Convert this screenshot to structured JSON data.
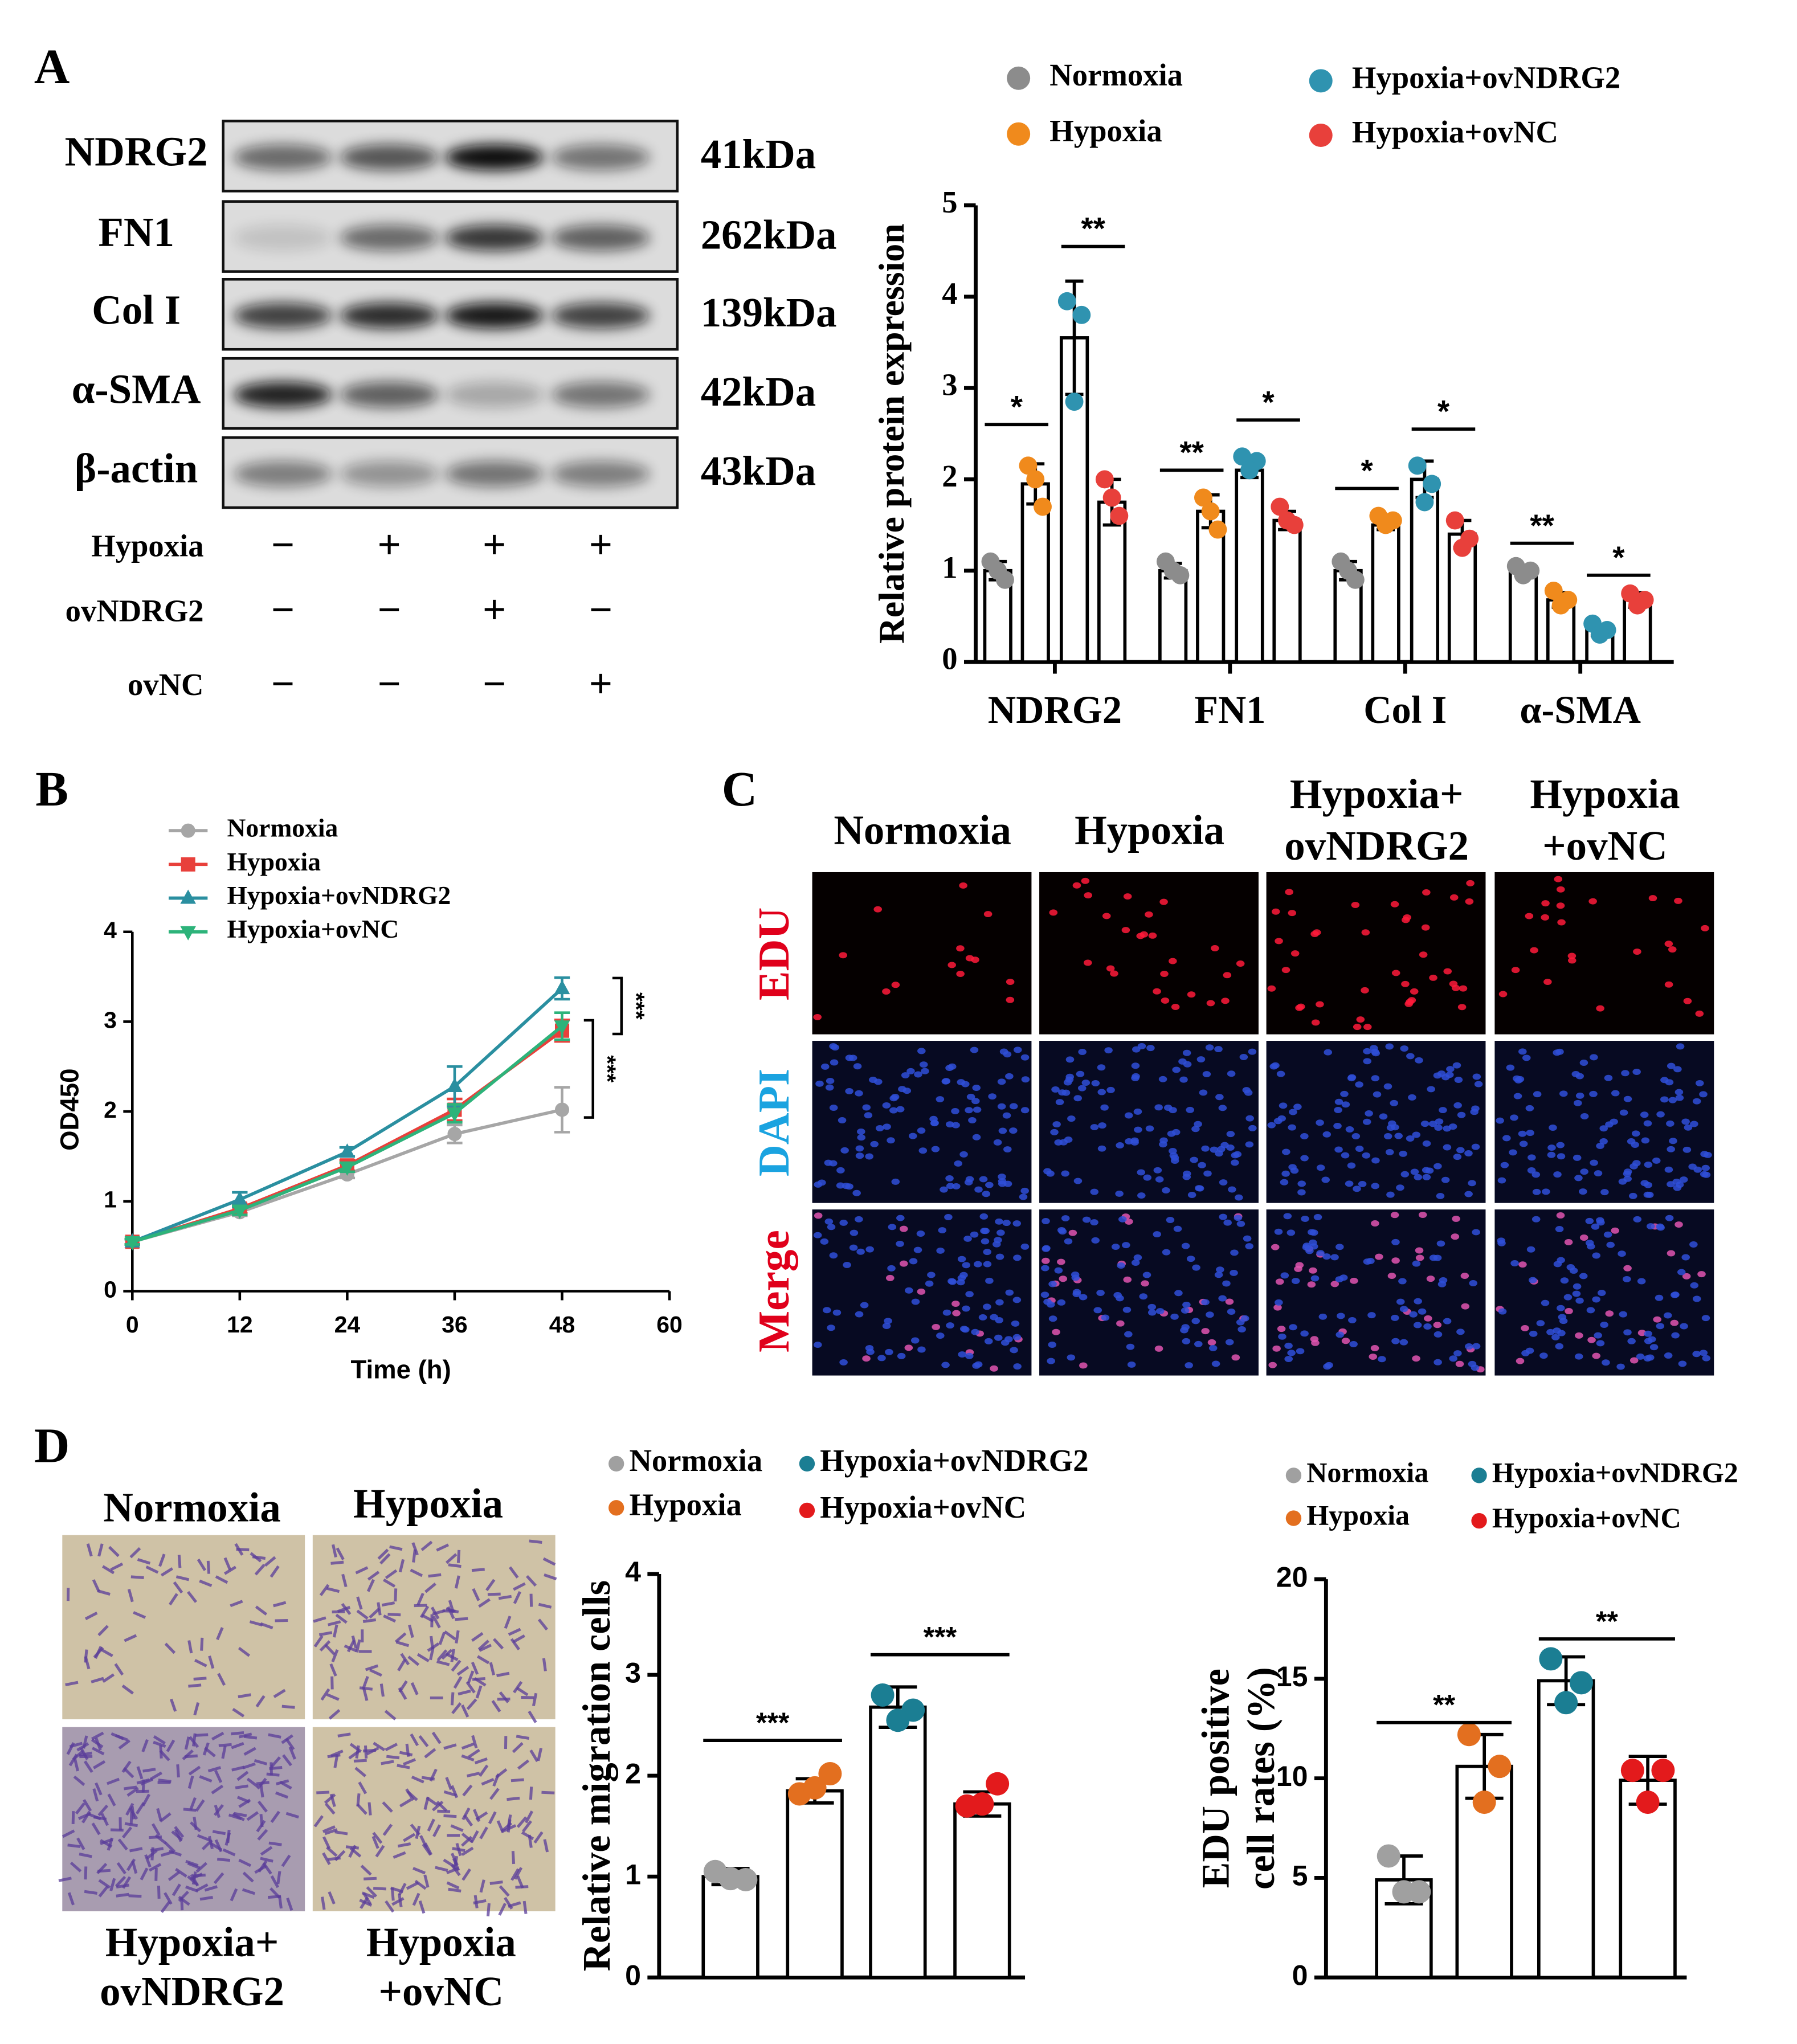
{
  "panel_labels": [
    "A",
    "B",
    "C",
    "D"
  ],
  "blot": {
    "proteins": [
      "NDRG2",
      "FN1",
      "Col I",
      "α-SMA",
      "β-actin"
    ],
    "sizes": [
      "41kDa",
      "262kDa",
      "139kDa",
      "42kDa",
      "43kDa"
    ],
    "conditions": [
      {
        "name": "Hypoxia",
        "signs": [
          "−",
          "+",
          "+",
          "+"
        ]
      },
      {
        "name": "ovNDRG2",
        "signs": [
          "−",
          "−",
          "+",
          "−"
        ]
      },
      {
        "name": "ovNC",
        "signs": [
          "−",
          "−",
          "−",
          "+"
        ]
      }
    ]
  },
  "edu_images": {
    "columns": [
      [
        "Normoxia"
      ],
      [
        "Hypoxia"
      ],
      [
        "Hypoxia+",
        "ovNDRG2"
      ],
      [
        "Hypoxia",
        "+ovNC"
      ]
    ],
    "rows": [
      "EDU",
      "DAPI",
      "Merge"
    ]
  },
  "transwell_images": {
    "labels": [
      [
        "Normoxia"
      ],
      [
        "Hypoxia"
      ],
      [
        "Hypoxia+",
        "ovNDRG2"
      ],
      [
        "Hypoxia",
        "+ovNC"
      ]
    ]
  },
  "chart_data": [
    {
      "type": "bar",
      "ylabel": "Relative protein expression",
      "categories": [
        "NDRG2",
        "FN1",
        "Col I",
        "α-SMA"
      ],
      "ylim": [
        0,
        5
      ],
      "yticks": [
        0,
        1,
        2,
        3,
        4,
        5
      ],
      "annotations": [
        "*",
        "**",
        "**",
        "*",
        "*",
        "*",
        "**",
        "*"
      ],
      "series": [
        {
          "name": "Normoxia",
          "color": "#8c8c8c",
          "values": [
            1.0,
            1.0,
            1.0,
            1.0
          ],
          "errors": [
            0.1,
            0.08,
            0.1,
            0.05
          ],
          "points": [
            [
              1.1,
              0.9,
              1.0
            ],
            [
              1.1,
              0.95,
              1.0
            ],
            [
              1.1,
              0.9,
              1.0
            ],
            [
              1.05,
              1.0,
              0.95
            ]
          ]
        },
        {
          "name": "Hypoxia",
          "color": "#f08a1c",
          "values": [
            1.95,
            1.65,
            1.5,
            0.68
          ],
          "errors": [
            0.22,
            0.18,
            0.05,
            0.08
          ],
          "points": [
            [
              2.15,
              1.7,
              2.0
            ],
            [
              1.8,
              1.45,
              1.65
            ],
            [
              1.6,
              1.55,
              1.5
            ],
            [
              0.78,
              0.68,
              0.62
            ]
          ]
        },
        {
          "name": "Hypoxia+ovNDRG2",
          "color": "#2f93b0",
          "values": [
            3.55,
            2.1,
            2.0,
            0.35
          ],
          "errors": [
            0.62,
            0.08,
            0.2,
            0.06
          ],
          "points": [
            [
              3.95,
              3.8,
              2.85
            ],
            [
              2.25,
              2.2,
              2.1
            ],
            [
              2.15,
              1.95,
              1.75
            ],
            [
              0.42,
              0.35,
              0.3
            ]
          ]
        },
        {
          "name": "Hypoxia+ovNC",
          "color": "#e8403b",
          "values": [
            1.75,
            1.55,
            1.4,
            0.68
          ],
          "errors": [
            0.25,
            0.1,
            0.15,
            0.08
          ],
          "points": [
            [
              2.0,
              1.6,
              1.8
            ],
            [
              1.7,
              1.5,
              1.55
            ],
            [
              1.55,
              1.35,
              1.25
            ],
            [
              0.75,
              0.68,
              0.62
            ]
          ]
        }
      ]
    },
    {
      "type": "line",
      "xlabel": "Time (h)",
      "ylabel": "OD450",
      "x": [
        0,
        12,
        24,
        36,
        48
      ],
      "xlim": [
        0,
        60
      ],
      "xticks": [
        0,
        12,
        24,
        36,
        48,
        60
      ],
      "ylim": [
        0,
        4
      ],
      "yticks": [
        0,
        1,
        2,
        3,
        4
      ],
      "annotations": [
        "***",
        "***"
      ],
      "series": [
        {
          "name": "Normoxia",
          "color": "#a6a6a6",
          "marker": "circle",
          "values": [
            0.55,
            0.88,
            1.3,
            1.75,
            2.02
          ],
          "errors": [
            0.03,
            0.04,
            0.04,
            0.1,
            0.25
          ]
        },
        {
          "name": "Hypoxia",
          "color": "#e8403b",
          "marker": "square",
          "values": [
            0.55,
            0.92,
            1.4,
            2.02,
            2.9
          ],
          "errors": [
            0.03,
            0.05,
            0.06,
            0.12,
            0.12
          ]
        },
        {
          "name": "Hypoxia+ovNDRG2",
          "color": "#2a8fa0",
          "marker": "triangle-up",
          "values": [
            0.55,
            1.02,
            1.55,
            2.28,
            3.37
          ],
          "errors": [
            0.03,
            0.08,
            0.05,
            0.22,
            0.12
          ]
        },
        {
          "name": "Hypoxia+ovNC",
          "color": "#2db37a",
          "marker": "triangle-down",
          "values": [
            0.55,
            0.9,
            1.38,
            1.98,
            2.95
          ],
          "errors": [
            0.03,
            0.05,
            0.05,
            0.1,
            0.15
          ]
        }
      ]
    },
    {
      "type": "bar",
      "ylabel": "Relative migration cells",
      "ylim": [
        0,
        4
      ],
      "yticks": [
        0,
        1,
        2,
        3,
        4
      ],
      "annotations": [
        "***",
        "***"
      ],
      "series": [
        {
          "name": "Normoxia",
          "color": "#a0a0a0",
          "values": [
            1.0
          ],
          "errors": [
            0.08
          ],
          "points": [
            [
              1.05,
              0.97,
              0.98
            ]
          ]
        },
        {
          "name": "Hypoxia",
          "color": "#e36f1f",
          "values": [
            1.85
          ],
          "errors": [
            0.12
          ],
          "points": [
            [
              1.82,
              2.02,
              1.88
            ]
          ]
        },
        {
          "name": "Hypoxia+ovNDRG2",
          "color": "#1b7e93",
          "values": [
            2.68
          ],
          "errors": [
            0.2
          ],
          "points": [
            [
              2.8,
              2.65,
              2.55
            ]
          ]
        },
        {
          "name": "Hypoxia+ovNC",
          "color": "#e31a1c",
          "values": [
            1.72
          ],
          "errors": [
            0.12
          ],
          "points": [
            [
              1.7,
              1.92,
              1.72
            ]
          ]
        }
      ]
    },
    {
      "type": "bar",
      "ylabel": [
        "EDU positive",
        "cell rates (%)"
      ],
      "ylim": [
        0,
        20
      ],
      "yticks": [
        0,
        5,
        10,
        15,
        20
      ],
      "annotations": [
        "**",
        "**"
      ],
      "series": [
        {
          "name": "Normoxia",
          "color": "#a0a0a0",
          "values": [
            4.9
          ],
          "errors": [
            1.2
          ],
          "points": [
            [
              6.1,
              4.3,
              4.3
            ]
          ]
        },
        {
          "name": "Hypoxia",
          "color": "#e36f1f",
          "values": [
            10.6
          ],
          "errors": [
            1.6
          ],
          "points": [
            [
              12.2,
              10.6,
              8.8
            ]
          ]
        },
        {
          "name": "Hypoxia+ovNDRG2",
          "color": "#1b7e93",
          "values": [
            14.9
          ],
          "errors": [
            1.2
          ],
          "points": [
            [
              16.0,
              14.8,
              13.8
            ]
          ]
        },
        {
          "name": "Hypoxia+ovNC",
          "color": "#e31a1c",
          "values": [
            9.9
          ],
          "errors": [
            1.2
          ],
          "points": [
            [
              10.4,
              10.4,
              8.8
            ]
          ]
        }
      ]
    }
  ]
}
